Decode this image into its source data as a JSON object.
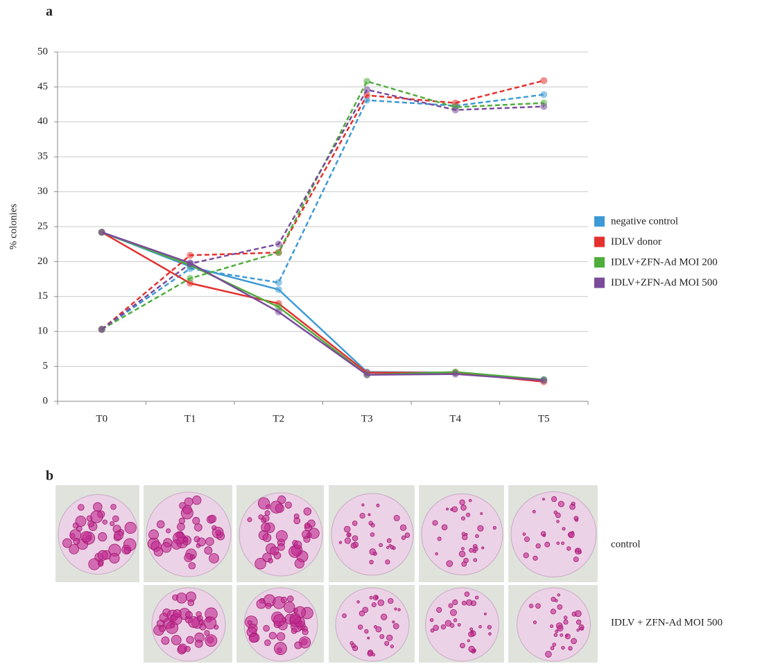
{
  "panel_a_label": "a",
  "chart_data": {
    "type": "line",
    "ylabel": "% colonies",
    "categories": [
      "T0",
      "T1",
      "T2",
      "T3",
      "T4",
      "T5"
    ],
    "ylim": [
      0,
      50
    ],
    "yticks": [
      0,
      5,
      10,
      15,
      20,
      25,
      30,
      35,
      40,
      45,
      50
    ],
    "grid": true,
    "legend": "right",
    "series": [
      {
        "name": "negative control",
        "color": "#3d9ad6",
        "solid": [
          24.2,
          19.3,
          16.0,
          4.2,
          4.1,
          3.1
        ],
        "dashed": [
          10.3,
          19.0,
          17.0,
          43.1,
          42.3,
          43.9
        ]
      },
      {
        "name": "IDLV donor",
        "color": "#e3312d",
        "solid": [
          24.2,
          16.9,
          14.0,
          4.1,
          4.1,
          2.8
        ],
        "dashed": [
          10.3,
          20.9,
          21.3,
          43.8,
          42.7,
          45.9
        ]
      },
      {
        "name": "IDLV+ZFN-Ad MOI 200",
        "color": "#4fad3c",
        "solid": [
          24.2,
          19.5,
          13.5,
          3.8,
          4.2,
          3.1
        ],
        "dashed": [
          10.3,
          17.6,
          21.3,
          45.8,
          42.1,
          42.7
        ]
      },
      {
        "name": "IDLV+ZFN-Ad MOI 500",
        "color": "#7a4b9b",
        "solid": [
          24.2,
          19.8,
          12.8,
          3.8,
          3.9,
          3.0
        ],
        "dashed": [
          10.3,
          19.7,
          22.5,
          44.6,
          41.7,
          42.2
        ]
      }
    ]
  },
  "panel_b": {
    "label": "b",
    "rows": [
      "control",
      "IDLV + ZFN-Ad MOI 500"
    ]
  }
}
